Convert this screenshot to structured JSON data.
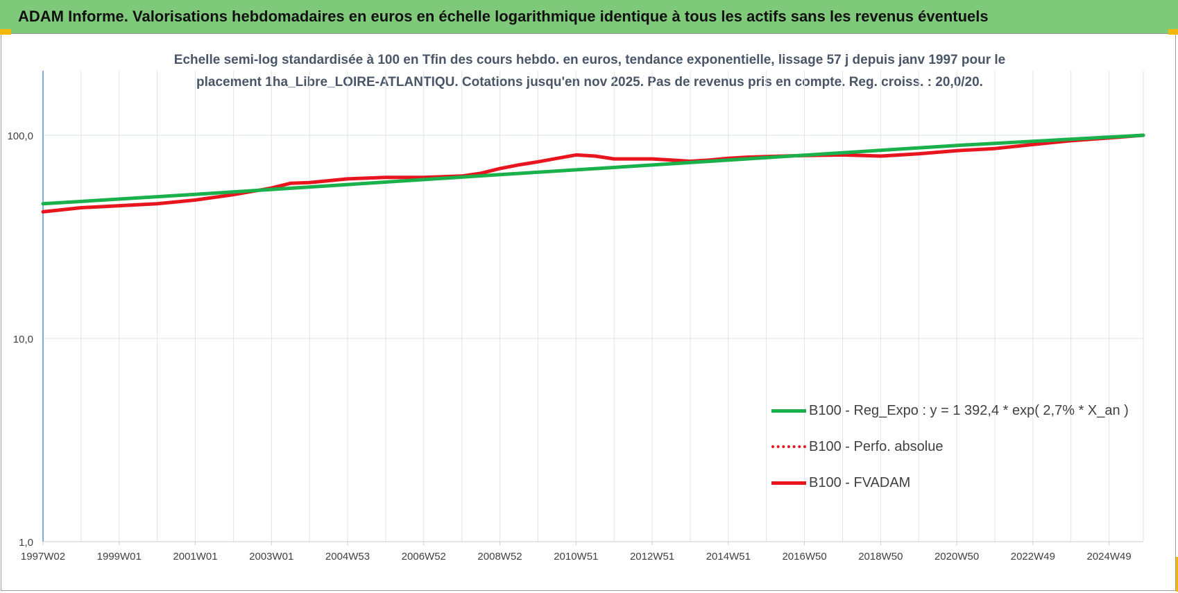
{
  "header": {
    "title": "ADAM Informe. Valorisations hebdomadaires en euros en échelle logarithmique identique à tous les actifs sans les revenus éventuels"
  },
  "colors": {
    "banner": "#7fc97a",
    "reg_expo": "#1ab04c",
    "fvadam": "#e8141e",
    "perfo": "#e8141e",
    "axis": "#5b8fd0",
    "grid": "#dde3ea"
  },
  "chart_data": {
    "type": "line",
    "subtitle_lines": [
      "Echelle semi-log standardisée à 100 en Tfin des cours hebdo. en euros, tendance exponentielle, lissage 57 j depuis janv 1997 pour le",
      "placement 1ha_Libre_LOIRE-ATLANTIQU. Cotations jusqu'en nov 2025. Pas de revenus pris en compte. Reg. croiss. : 20,0/20."
    ],
    "y_scale": "log",
    "ylim": [
      1,
      200
    ],
    "y_ticks": [
      {
        "value": 1,
        "label": "1,0"
      },
      {
        "value": 10,
        "label": "10,0"
      },
      {
        "value": 100,
        "label": "100,0"
      }
    ],
    "xlim": [
      1997.0,
      2025.9
    ],
    "x_ticks": [
      {
        "t": 1997.0,
        "label": "1997W02"
      },
      {
        "t": 1999.0,
        "label": "1999W01"
      },
      {
        "t": 2001.0,
        "label": "2001W01"
      },
      {
        "t": 2003.0,
        "label": "2003W01"
      },
      {
        "t": 2005.0,
        "label": "2004W53"
      },
      {
        "t": 2007.0,
        "label": "2006W52"
      },
      {
        "t": 2009.0,
        "label": "2008W52"
      },
      {
        "t": 2011.0,
        "label": "2010W51"
      },
      {
        "t": 2013.0,
        "label": "2012W51"
      },
      {
        "t": 2015.0,
        "label": "2014W51"
      },
      {
        "t": 2017.0,
        "label": "2016W50"
      },
      {
        "t": 2019.0,
        "label": "2018W50"
      },
      {
        "t": 2021.0,
        "label": "2020W50"
      },
      {
        "t": 2023.0,
        "label": "2022W49"
      },
      {
        "t": 2025.0,
        "label": "2024W49"
      }
    ],
    "legend_position": "bottom-right",
    "series": [
      {
        "name": "B100 - Reg_Expo : y = 1 392,4 * exp( 2,7% *  X_an )",
        "style": "solid",
        "x": [
          1997.0,
          2001.0,
          2005.0,
          2009.0,
          2013.0,
          2017.0,
          2021.0,
          2025.9
        ],
        "y": [
          46.0,
          51.2,
          57.2,
          64.0,
          71.4,
          79.8,
          89.1,
          100.0
        ]
      },
      {
        "name": "B100 - Perfo. absolue",
        "style": "dotted",
        "x": [],
        "y": []
      },
      {
        "name": "B100 - FVADAM",
        "style": "solid",
        "x": [
          1997.0,
          1998.0,
          1999.0,
          2000.0,
          2001.0,
          2002.0,
          2003.0,
          2003.5,
          2004.0,
          2005.0,
          2006.0,
          2007.0,
          2008.0,
          2008.5,
          2009.0,
          2009.5,
          2010.0,
          2010.5,
          2011.0,
          2011.5,
          2012.0,
          2012.5,
          2013.0,
          2013.5,
          2014.0,
          2014.5,
          2015.0,
          2015.5,
          2016.0,
          2017.0,
          2018.0,
          2019.0,
          2020.0,
          2021.0,
          2022.0,
          2023.0,
          2024.0,
          2025.0,
          2025.9
        ],
        "y": [
          42.0,
          44.0,
          45.0,
          46.0,
          48.0,
          51.0,
          55.0,
          58.0,
          58.5,
          61.0,
          62.0,
          62.0,
          63.0,
          65.0,
          68.5,
          71.5,
          74.0,
          77.0,
          80.0,
          79.0,
          76.5,
          76.5,
          76.5,
          75.5,
          74.5,
          75.5,
          77.0,
          78.0,
          78.5,
          79.5,
          80.0,
          79.0,
          81.0,
          84.0,
          86.0,
          90.0,
          94.0,
          97.0,
          100.0
        ]
      }
    ]
  }
}
